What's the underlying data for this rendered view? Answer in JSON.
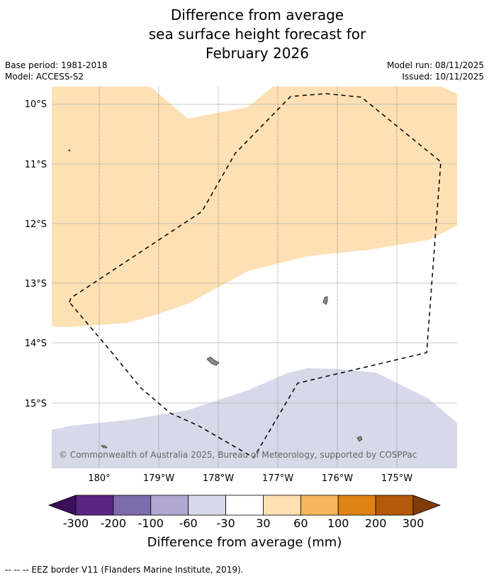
{
  "title": {
    "line1": "Difference from average",
    "line2": "sea surface height forecast for",
    "line3": "February 2026"
  },
  "meta": {
    "base_period": "Base period: 1981-2018",
    "model": "Model: ACCESS-S2",
    "model_run": "Model run: 08/11/2025",
    "issued": "Issued: 10/11/2025"
  },
  "map": {
    "lat_labels": [
      "10°S",
      "11°S",
      "12°S",
      "13°S",
      "14°S",
      "15°S"
    ],
    "lon_labels": [
      "180°",
      "179°W",
      "178°W",
      "177°W",
      "176°W",
      "175°W"
    ],
    "copyright": "© Commonwealth of Australia 2025, Bureau of Meteorology, supported by COSPPac",
    "colors": {
      "positive_30_60": "#fde0b3",
      "negative_60_30": "#d7d8ea",
      "neutral": "#ffffff",
      "island": "#8a8a8a"
    }
  },
  "legend": {
    "ticks": [
      "-300",
      "-200",
      "-100",
      "-60",
      "-30",
      "30",
      "60",
      "100",
      "200",
      "300"
    ],
    "label": "Difference from average (mm)",
    "colors": [
      "#3b0f5a",
      "#5a2585",
      "#7e6bac",
      "#b0a8d1",
      "#d7d8ea",
      "#ffffff",
      "#fde0b3",
      "#f8b55c",
      "#e08314",
      "#b35909",
      "#7f3b08"
    ]
  },
  "footnote": "-- -- -- EEZ border V11 (Flanders Marine Institute, 2019)."
}
